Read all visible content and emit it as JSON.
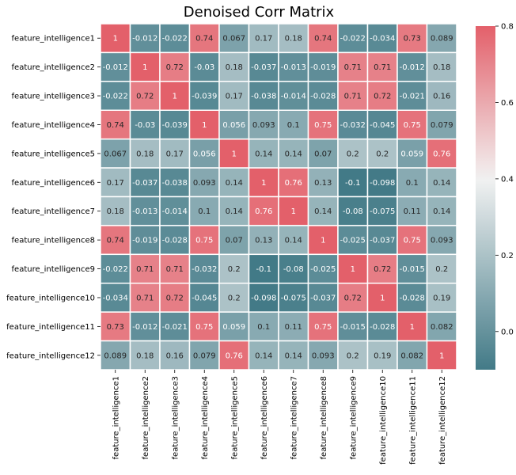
{
  "chart_data": {
    "type": "heatmap",
    "title": "Denoised Corr Matrix",
    "xlabel": "",
    "ylabel": "",
    "labels": [
      "feature_intelligence1",
      "feature_intelligence2",
      "feature_intelligence3",
      "feature_intelligence4",
      "feature_intelligence5",
      "feature_intelligence6",
      "feature_intelligence7",
      "feature_intelligence8",
      "feature_intelligence9",
      "feature_intelligence10",
      "feature_intelligence11",
      "feature_intelligence12"
    ],
    "values": [
      [
        1,
        -0.012,
        -0.022,
        0.74,
        0.067,
        0.17,
        0.18,
        0.74,
        -0.022,
        -0.034,
        0.73,
        0.089
      ],
      [
        -0.012,
        1,
        0.72,
        -0.03,
        0.18,
        -0.037,
        -0.013,
        -0.019,
        0.71,
        0.71,
        -0.012,
        0.18
      ],
      [
        -0.022,
        0.72,
        1,
        -0.039,
        0.17,
        -0.038,
        -0.014,
        -0.028,
        0.71,
        0.72,
        -0.021,
        0.16
      ],
      [
        0.74,
        -0.03,
        -0.039,
        1,
        0.056,
        0.093,
        0.1,
        0.75,
        -0.032,
        -0.045,
        0.75,
        0.079
      ],
      [
        0.067,
        0.18,
        0.17,
        0.056,
        1,
        0.14,
        0.14,
        0.07,
        0.2,
        0.2,
        0.059,
        0.76
      ],
      [
        0.17,
        -0.037,
        -0.038,
        0.093,
        0.14,
        1,
        0.76,
        0.13,
        -0.1,
        -0.098,
        0.1,
        0.14
      ],
      [
        0.18,
        -0.013,
        -0.014,
        0.1,
        0.14,
        0.76,
        1,
        0.14,
        -0.08,
        -0.075,
        0.11,
        0.14
      ],
      [
        0.74,
        -0.019,
        -0.028,
        0.75,
        0.07,
        0.13,
        0.14,
        1,
        -0.025,
        -0.037,
        0.75,
        0.093
      ],
      [
        -0.022,
        0.71,
        0.71,
        -0.032,
        0.2,
        -0.1,
        -0.08,
        -0.025,
        1,
        0.72,
        -0.015,
        0.2
      ],
      [
        -0.034,
        0.71,
        0.72,
        -0.045,
        0.2,
        -0.098,
        -0.075,
        -0.037,
        0.72,
        1,
        -0.028,
        0.19
      ],
      [
        0.73,
        -0.012,
        -0.021,
        0.75,
        0.059,
        0.1,
        0.11,
        0.75,
        -0.015,
        -0.028,
        1,
        0.082
      ],
      [
        0.089,
        0.18,
        0.16,
        0.079,
        0.76,
        0.14,
        0.14,
        0.093,
        0.2,
        0.19,
        0.082,
        1
      ]
    ],
    "value_labels": [
      [
        "1",
        "-0.012",
        "-0.022",
        "0.74",
        "0.067",
        "0.17",
        "0.18",
        "0.74",
        "-0.022",
        "-0.034",
        "0.73",
        "0.089"
      ],
      [
        "-0.012",
        "1",
        "0.72",
        "-0.03",
        "0.18",
        "-0.037",
        "-0.013",
        "-0.019",
        "0.71",
        "0.71",
        "-0.012",
        "0.18"
      ],
      [
        "-0.022",
        "0.72",
        "1",
        "-0.039",
        "0.17",
        "-0.038",
        "-0.014",
        "-0.028",
        "0.71",
        "0.72",
        "-0.021",
        "0.16"
      ],
      [
        "0.74",
        "-0.03",
        "-0.039",
        "1",
        "0.056",
        "0.093",
        "0.1",
        "0.75",
        "-0.032",
        "-0.045",
        "0.75",
        "0.079"
      ],
      [
        "0.067",
        "0.18",
        "0.17",
        "0.056",
        "1",
        "0.14",
        "0.14",
        "0.07",
        "0.2",
        "0.2",
        "0.059",
        "0.76"
      ],
      [
        "0.17",
        "-0.037",
        "-0.038",
        "0.093",
        "0.14",
        "1",
        "0.76",
        "0.13",
        "-0.1",
        "-0.098",
        "0.1",
        "0.14"
      ],
      [
        "0.18",
        "-0.013",
        "-0.014",
        "0.1",
        "0.14",
        "0.76",
        "1",
        "0.14",
        "-0.08",
        "-0.075",
        "0.11",
        "0.14"
      ],
      [
        "0.74",
        "-0.019",
        "-0.028",
        "0.75",
        "0.07",
        "0.13",
        "0.14",
        "1",
        "-0.025",
        "-0.037",
        "0.75",
        "0.093"
      ],
      [
        "-0.022",
        "0.71",
        "0.71",
        "-0.032",
        "0.2",
        "-0.1",
        "-0.08",
        "-0.025",
        "1",
        "0.72",
        "-0.015",
        "0.2"
      ],
      [
        "-0.034",
        "0.71",
        "0.72",
        "-0.045",
        "0.2",
        "-0.098",
        "-0.075",
        "-0.037",
        "0.72",
        "1",
        "-0.028",
        "0.19"
      ],
      [
        "0.73",
        "-0.012",
        "-0.021",
        "0.75",
        "0.059",
        "0.1",
        "0.11",
        "0.75",
        "-0.015",
        "-0.028",
        "1",
        "0.082"
      ],
      [
        "0.089",
        "0.18",
        "0.16",
        "0.079",
        "0.76",
        "0.14",
        "0.14",
        "0.093",
        "0.2",
        "0.19",
        "0.082",
        "1"
      ]
    ],
    "colorbar": {
      "vmin": -0.1,
      "vmax": 0.8,
      "center": 0.4,
      "ticks": [
        0.0,
        0.2,
        0.4,
        0.6,
        0.8
      ],
      "tick_labels": [
        "0.0",
        "0.2",
        "0.4",
        "0.6",
        "0.8"
      ]
    },
    "colors": {
      "low": "#427a87",
      "mid": "#f2f2f2",
      "high": "#e3606a",
      "grid": "#ffffff"
    },
    "grid": false
  }
}
